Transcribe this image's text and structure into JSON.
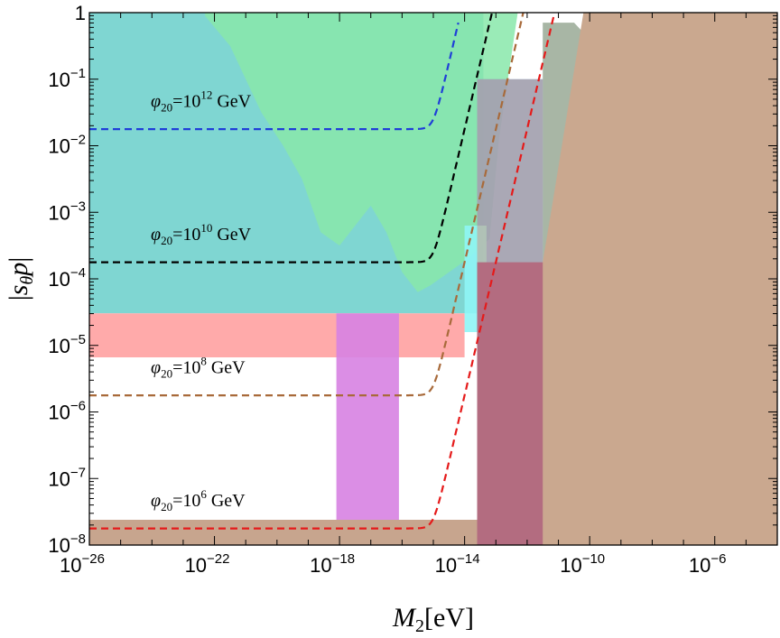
{
  "chart_data": {
    "type": "line",
    "title": "",
    "xlabel_main": "M",
    "xlabel_sub": "2",
    "xlabel_unit": "[eV]",
    "ylabel_prefix": "|",
    "ylabel_s": "s",
    "ylabel_theta": "θ",
    "ylabel_p": "p",
    "ylabel_suffix": "|",
    "x_log_range": [
      -26,
      -4
    ],
    "y_log_range": [
      -8,
      0
    ],
    "x_scale": "log",
    "y_scale": "log",
    "grid": false,
    "legend": "none",
    "x_ticks": [
      {
        "exp": -26,
        "base": "10",
        "sup": "−26"
      },
      {
        "exp": -22,
        "base": "10",
        "sup": "−22"
      },
      {
        "exp": -18,
        "base": "10",
        "sup": "−18"
      },
      {
        "exp": -14,
        "base": "10",
        "sup": "−14"
      },
      {
        "exp": -10,
        "base": "10",
        "sup": "−10"
      },
      {
        "exp": -6,
        "base": "10",
        "sup": "−6"
      }
    ],
    "y_ticks": [
      {
        "exp": 0,
        "base": "1",
        "sup": ""
      },
      {
        "exp": -1,
        "base": "10",
        "sup": "−1"
      },
      {
        "exp": -2,
        "base": "10",
        "sup": "−2"
      },
      {
        "exp": -3,
        "base": "10",
        "sup": "−3"
      },
      {
        "exp": -4,
        "base": "10",
        "sup": "−4"
      },
      {
        "exp": -5,
        "base": "10",
        "sup": "−5"
      },
      {
        "exp": -6,
        "base": "10",
        "sup": "−6"
      },
      {
        "exp": -7,
        "base": "10",
        "sup": "−7"
      },
      {
        "exp": -8,
        "base": "10",
        "sup": "−8"
      }
    ],
    "regions": [
      {
        "name": "",
        "color": "#7fd6d2",
        "opacity": 1.0,
        "points_log": [
          [
            -26,
            0
          ],
          [
            -13.4,
            0
          ],
          [
            -13.4,
            -4.52
          ],
          [
            -26,
            -4.52
          ]
        ]
      },
      {
        "name": "",
        "color": "#88e8aa",
        "opacity": 0.85,
        "points_log": [
          [
            -22.3,
            0
          ],
          [
            -12.3,
            0
          ],
          [
            -12.9,
            -1.9
          ],
          [
            -13.2,
            -3.4
          ],
          [
            -13.9,
            -3.7
          ],
          [
            -15.1,
            -4.1
          ],
          [
            -15.5,
            -4.2
          ],
          [
            -16.0,
            -3.9
          ],
          [
            -16.5,
            -3.3
          ],
          [
            -17.0,
            -2.9
          ],
          [
            -17.5,
            -3.2
          ],
          [
            -18.0,
            -3.5
          ],
          [
            -18.6,
            -3.3
          ],
          [
            -19.2,
            -2.5
          ],
          [
            -19.8,
            -2.0
          ],
          [
            -20.5,
            -1.5
          ],
          [
            -21.5,
            -0.5
          ],
          [
            -22.3,
            -0.05
          ]
        ]
      },
      {
        "name": "",
        "color": "#69a8ee",
        "opacity": 0.85,
        "points_log": [
          [
            -13.6,
            -1.0
          ],
          [
            -11.5,
            -1.0
          ],
          [
            -11.5,
            -5.0
          ],
          [
            -13.6,
            -5.0
          ]
        ]
      },
      {
        "name": "",
        "color": "#8ff5f5",
        "opacity": 0.9,
        "points_log": [
          [
            -14.0,
            -3.2
          ],
          [
            -13.3,
            -3.2
          ],
          [
            -13.3,
            -4.8
          ],
          [
            -14.0,
            -4.8
          ]
        ]
      },
      {
        "name": "",
        "color": "#ffaaaa",
        "opacity": 1.0,
        "points_log": [
          [
            -26,
            -4.52
          ],
          [
            -14.0,
            -4.52
          ],
          [
            -14.0,
            -5.18
          ],
          [
            -26,
            -5.18
          ]
        ]
      },
      {
        "name": "",
        "color": "#d782e2",
        "opacity": 0.9,
        "points_log": [
          [
            -18.1,
            -4.52
          ],
          [
            -16.1,
            -4.52
          ],
          [
            -16.1,
            -8
          ],
          [
            -18.1,
            -8
          ]
        ]
      },
      {
        "name": "",
        "color": "#ce9c84",
        "opacity": 0.55,
        "points_log": [
          [
            -13.6,
            -1.0
          ],
          [
            -11.5,
            -1.0
          ],
          [
            -11.5,
            -8
          ],
          [
            -13.6,
            -8
          ]
        ]
      },
      {
        "name": "",
        "color": "#7a8f74",
        "opacity": 0.65,
        "points_log": [
          [
            -11.5,
            -0.15
          ],
          [
            -10.5,
            -0.15
          ],
          [
            -10.0,
            -0.4
          ],
          [
            -9.0,
            -0.35
          ],
          [
            -8.0,
            -0.5
          ],
          [
            -6.5,
            -0.4
          ],
          [
            -5.9,
            -0.3
          ],
          [
            -5.8,
            -0.25
          ],
          [
            -5.8,
            -1.8
          ],
          [
            -6.5,
            -2.0
          ],
          [
            -7.5,
            -2.6
          ],
          [
            -8.5,
            -3.0
          ],
          [
            -9.5,
            -3.5
          ],
          [
            -10.5,
            -3.75
          ],
          [
            -11.5,
            -3.75
          ]
        ]
      },
      {
        "name": "",
        "color": "#d8c21e",
        "opacity": 0.85,
        "points_log": [
          [
            -4.6,
            0
          ],
          [
            -4.0,
            0
          ],
          [
            -4.0,
            -0.45
          ],
          [
            -4.6,
            -0.45
          ]
        ]
      },
      {
        "name": "",
        "color": "#caa88f",
        "opacity": 1.0,
        "points_log": [
          [
            -13.05,
            -8
          ],
          [
            -12.2,
            -5.7
          ],
          [
            -11.2,
            -2.9
          ],
          [
            -10.2,
            0
          ],
          [
            -4,
            0
          ],
          [
            -4,
            -8
          ]
        ]
      },
      {
        "name": "",
        "color": "#c7a58e",
        "opacity": 1.0,
        "points_log": [
          [
            -26,
            -7.62
          ],
          [
            -13.4,
            -7.62
          ],
          [
            -13.05,
            -8
          ],
          [
            -26,
            -8
          ]
        ]
      },
      {
        "name": "",
        "color": "#b36c80",
        "opacity": 1.0,
        "points_log": [
          [
            -13.6,
            -3.75
          ],
          [
            -11.5,
            -3.75
          ],
          [
            -11.5,
            -8
          ],
          [
            -13.6,
            -8
          ]
        ]
      }
    ],
    "series": [
      {
        "label": "φ₂₀=10¹² GeV",
        "color": "#1f3ed8",
        "plateau_log": -1.75,
        "rise_x": -15.0,
        "end_x": -14.2
      },
      {
        "label": "φ₂₀=10¹⁰ GeV",
        "color": "#000000",
        "plateau_log": -3.75,
        "rise_x": -15.0,
        "end_x": -12.9
      },
      {
        "label": "φ₂₀=10⁸ GeV",
        "color": "#a86a3a",
        "plateau_log": -5.75,
        "rise_x": -15.0,
        "end_x": -11.6
      },
      {
        "label": "φ₂₀=10⁶ GeV",
        "color": "#e51a1a",
        "plateau_log": -7.75,
        "rise_x": -15.0,
        "end_x": -10.3
      }
    ],
    "annotations": [
      {
        "phi": "φ",
        "sub": "20",
        "eq": "=10",
        "sup": "12",
        "unit": " GeV",
        "x_log": -26,
        "y_log": -1.5
      },
      {
        "phi": "φ",
        "sub": "20",
        "eq": "=10",
        "sup": "10",
        "unit": " GeV",
        "x_log": -26,
        "y_log": -3.5
      },
      {
        "phi": "φ",
        "sub": "20",
        "eq": "=10",
        "sup": "8",
        "unit": " GeV",
        "x_log": -26,
        "y_log": -5.5
      },
      {
        "phi": "φ",
        "sub": "20",
        "eq": "=10",
        "sup": "6",
        "unit": " GeV",
        "x_log": -26,
        "y_log": -7.5
      }
    ]
  }
}
